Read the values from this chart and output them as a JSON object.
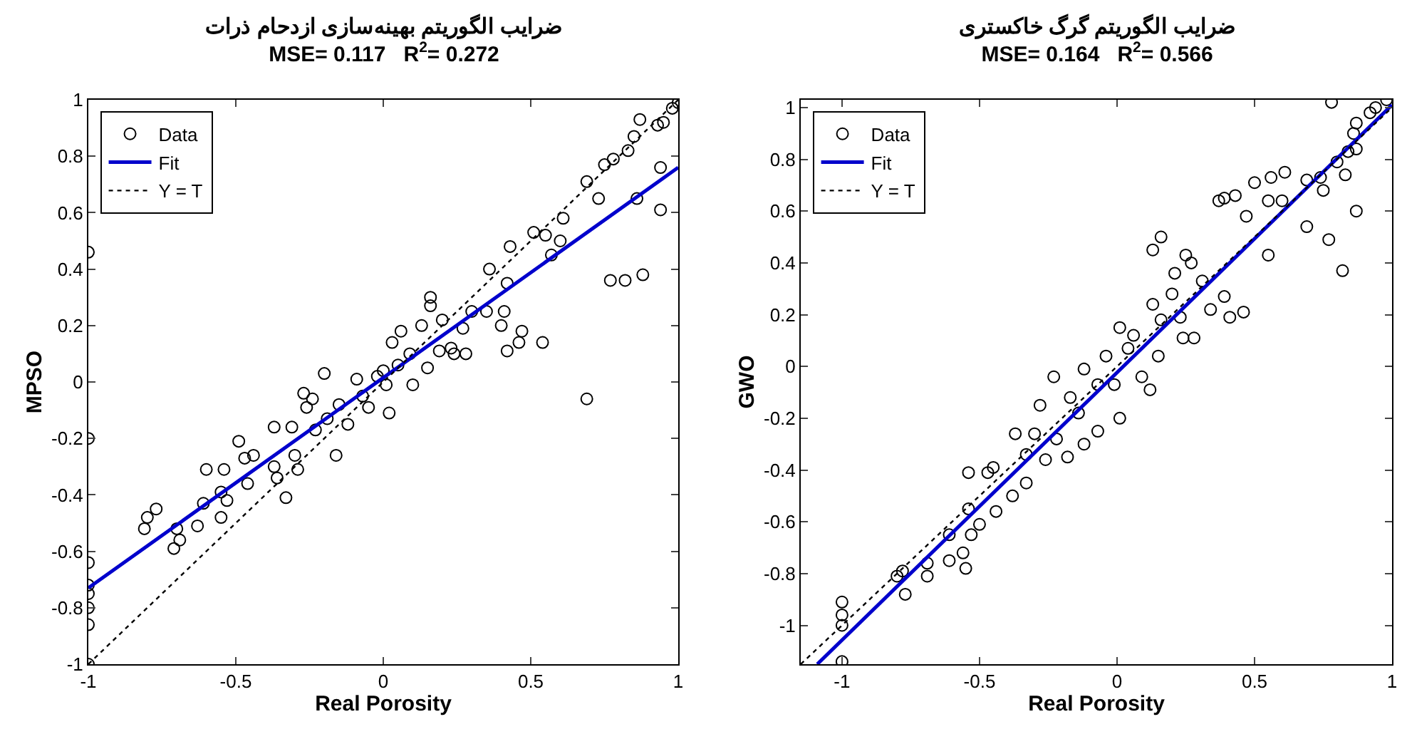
{
  "chart_data": [
    {
      "type": "scatter",
      "title": "ضرایب الگوریتم بهینه‌سازی ازدحام ذرات",
      "subtitle": "MSE= 0.117   R$^{2}$= 0.272",
      "xlabel": "Real Porosity",
      "ylabel": "MPSO",
      "xlim": [
        -1,
        1
      ],
      "ylim": [
        -1,
        1
      ],
      "xticks": [
        -1,
        -0.5,
        0,
        0.5,
        1
      ],
      "yticks": [
        -1,
        -0.8,
        -0.6,
        -0.4,
        -0.2,
        0,
        0.2,
        0.4,
        0.6,
        0.8,
        1
      ],
      "grid": false,
      "legend": "top left",
      "marker": "circle",
      "series": [
        {
          "name": "Data",
          "color": "#000000",
          "x": [
            -1,
            -1,
            -1,
            -1,
            -1,
            -1,
            -1,
            -1,
            -0.8,
            -0.77,
            -0.81,
            -0.71,
            -0.69,
            -0.7,
            -0.63,
            -0.61,
            -0.6,
            -0.55,
            -0.54,
            -0.55,
            -0.53,
            -0.49,
            -0.47,
            -0.46,
            -0.44,
            -0.37,
            -0.37,
            -0.36,
            -0.33,
            -0.31,
            -0.3,
            -0.29,
            -0.27,
            -0.26,
            -0.24,
            -0.23,
            -0.2,
            -0.19,
            -0.16,
            -0.15,
            -0.12,
            -0.09,
            -0.07,
            -0.05,
            -0.02,
            0,
            0.01,
            0.02,
            0.03,
            0.05,
            0.06,
            0.09,
            0.1,
            0.13,
            0.15,
            0.16,
            0.16,
            0.19,
            0.2,
            0.23,
            0.24,
            0.27,
            0.28,
            0.3,
            0.35,
            0.36,
            0.4,
            0.41,
            0.42,
            0.42,
            0.43,
            0.46,
            0.47,
            0.51,
            0.54,
            0.55,
            0.57,
            0.6,
            0.61,
            0.69,
            0.69,
            0.73,
            0.75,
            0.77,
            0.78,
            0.82,
            0.83,
            0.85,
            0.86,
            0.87,
            0.88,
            0.94,
            0.93,
            0.94,
            0.95,
            0.98,
            1
          ],
          "values": [
            0.46,
            -0.2,
            -0.64,
            -0.72,
            -0.75,
            -0.8,
            -0.86,
            -1,
            -0.48,
            -0.45,
            -0.52,
            -0.59,
            -0.56,
            -0.52,
            -0.51,
            -0.43,
            -0.31,
            -0.48,
            -0.31,
            -0.39,
            -0.42,
            -0.21,
            -0.27,
            -0.36,
            -0.26,
            -0.16,
            -0.3,
            -0.34,
            -0.41,
            -0.16,
            -0.26,
            -0.31,
            -0.04,
            -0.09,
            -0.06,
            -0.17,
            0.03,
            -0.13,
            -0.26,
            -0.08,
            -0.15,
            0.01,
            -0.05,
            -0.09,
            0.02,
            0.04,
            -0.01,
            -0.11,
            0.14,
            0.06,
            0.18,
            0.1,
            -0.01,
            0.2,
            0.05,
            0.3,
            0.27,
            0.11,
            0.22,
            0.12,
            0.1,
            0.19,
            0.1,
            0.25,
            0.25,
            0.4,
            0.2,
            0.25,
            0.35,
            0.11,
            0.48,
            0.14,
            0.18,
            0.53,
            0.14,
            0.52,
            0.45,
            0.5,
            0.58,
            -0.06,
            0.71,
            0.65,
            0.77,
            0.36,
            0.79,
            0.36,
            0.82,
            0.87,
            0.65,
            0.93,
            0.38,
            0.76,
            0.91,
            0.61,
            0.92,
            0.97,
            0.99
          ]
        },
        {
          "name": "Fit",
          "type": "line",
          "marker": "none",
          "color": "#0000cc",
          "x": [
            -1,
            1
          ],
          "values": [
            -0.73,
            0.76
          ]
        },
        {
          "name": "Y = T",
          "type": "line",
          "marker": "none",
          "line_style": "dotted",
          "color": "#000000",
          "x": [
            -1,
            1
          ],
          "values": [
            -1,
            1
          ]
        }
      ]
    },
    {
      "type": "scatter",
      "title": "ضرایب الگوریتم گرگ خاکستری",
      "subtitle": "MSE= 0.164   R$^{2}$= 0.566",
      "xlabel": "Real Porosity",
      "ylabel": "GWO",
      "xlim": [
        -1.15,
        1
      ],
      "ylim": [
        -1.15,
        1.03
      ],
      "xticks": [
        -1,
        -0.5,
        0,
        0.5,
        1
      ],
      "yticks": [
        -1,
        -0.8,
        -0.6,
        -0.4,
        -0.2,
        0,
        0.2,
        0.4,
        0.6,
        0.8,
        1
      ],
      "grid": false,
      "legend": "top left",
      "marker": "circle",
      "series": [
        {
          "name": "Data",
          "color": "#000000",
          "x": [
            -1,
            -1,
            -1,
            -1,
            -0.8,
            -0.77,
            -0.78,
            -0.69,
            -0.69,
            -0.61,
            -0.61,
            -0.56,
            -0.55,
            -0.54,
            -0.53,
            -0.54,
            -0.5,
            -0.47,
            -0.45,
            -0.44,
            -0.38,
            -0.37,
            -0.33,
            -0.33,
            -0.3,
            -0.28,
            -0.26,
            -0.23,
            -0.22,
            -0.18,
            -0.17,
            -0.14,
            -0.12,
            -0.12,
            -0.07,
            -0.07,
            -0.04,
            -0.01,
            0.01,
            0.01,
            0.04,
            0.06,
            0.09,
            0.12,
            0.13,
            0.13,
            0.15,
            0.16,
            0.16,
            0.2,
            0.21,
            0.23,
            0.24,
            0.25,
            0.27,
            0.28,
            0.31,
            0.34,
            0.37,
            0.39,
            0.39,
            0.41,
            0.43,
            0.46,
            0.47,
            0.5,
            0.55,
            0.55,
            0.56,
            0.6,
            0.61,
            0.69,
            0.69,
            0.74,
            0.75,
            0.77,
            0.78,
            0.8,
            0.82,
            0.83,
            0.84,
            0.86,
            0.87,
            0.87,
            0.87,
            0.92,
            0.94,
            0.98
          ],
          "values": [
            -0.91,
            -0.96,
            -1,
            -1.14,
            -0.81,
            -0.88,
            -0.79,
            -0.76,
            -0.81,
            -0.65,
            -0.75,
            -0.72,
            -0.78,
            -0.55,
            -0.65,
            -0.41,
            -0.61,
            -0.41,
            -0.39,
            -0.56,
            -0.5,
            -0.26,
            -0.45,
            -0.34,
            -0.26,
            -0.15,
            -0.36,
            -0.04,
            -0.28,
            -0.35,
            -0.12,
            -0.18,
            -0.01,
            -0.3,
            -0.07,
            -0.25,
            0.04,
            -0.07,
            -0.2,
            0.15,
            0.07,
            0.12,
            -0.04,
            -0.09,
            0.24,
            0.45,
            0.04,
            0.5,
            0.18,
            0.28,
            0.36,
            0.19,
            0.11,
            0.43,
            0.4,
            0.11,
            0.33,
            0.22,
            0.64,
            0.65,
            0.27,
            0.19,
            0.66,
            0.21,
            0.58,
            0.71,
            0.64,
            0.43,
            0.73,
            0.64,
            0.75,
            0.72,
            0.54,
            0.73,
            0.68,
            0.49,
            1.02,
            0.79,
            0.37,
            0.74,
            0.83,
            0.9,
            0.94,
            0.84,
            0.6,
            0.98,
            1,
            1.03
          ]
        },
        {
          "name": "Fit",
          "type": "line",
          "marker": "none",
          "color": "#0000cc",
          "x": [
            -1.09,
            1
          ],
          "values": [
            -1.15,
            1.01
          ]
        },
        {
          "name": "Y = T",
          "type": "line",
          "marker": "none",
          "line_style": "dotted",
          "color": "#000000",
          "x": [
            -1.15,
            1
          ],
          "values": [
            -1.15,
            1
          ]
        }
      ]
    }
  ]
}
